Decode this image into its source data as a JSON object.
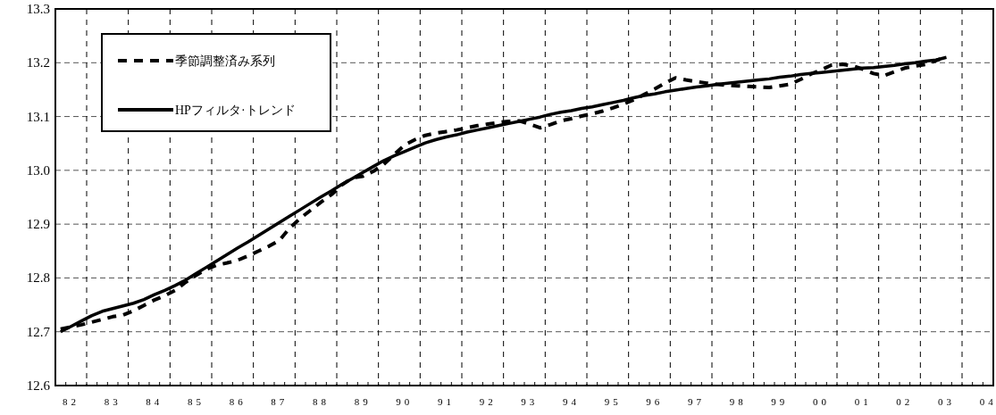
{
  "chart_data": {
    "type": "line",
    "grid": true,
    "legend": "top left",
    "ylim": [
      12.6,
      13.3
    ],
    "yticks": [
      12.6,
      12.7,
      12.8,
      12.9,
      {
        "value": 13,
        "label": "13.0"
      },
      13.1,
      13.2,
      13.3
    ],
    "categories": [
      null,
      "82",
      null,
      null,
      null,
      "83",
      null,
      null,
      null,
      "84",
      null,
      null,
      null,
      "85",
      null,
      null,
      null,
      "86",
      null,
      null,
      null,
      "87",
      null,
      null,
      null,
      "88",
      null,
      null,
      null,
      "89",
      null,
      null,
      null,
      "90",
      null,
      null,
      null,
      "91",
      null,
      null,
      null,
      "92",
      null,
      null,
      null,
      "93",
      null,
      null,
      null,
      "94",
      null,
      null,
      null,
      "95",
      null,
      null,
      null,
      "96",
      null,
      null,
      null,
      "97",
      null,
      null,
      null,
      "98",
      null,
      null,
      null,
      "99",
      null,
      null,
      null,
      "00",
      null,
      null,
      null,
      "01",
      null,
      null,
      null,
      "02",
      null,
      null,
      null,
      "03",
      null,
      null,
      null,
      "04"
    ],
    "series": [
      {
        "name": "季節調整済み系列",
        "color": "#000000",
        "line_style": "dashed",
        "values": [
          12.705,
          12.709,
          12.713,
          12.718,
          12.723,
          12.728,
          12.731,
          12.739,
          12.749,
          12.759,
          12.767,
          12.777,
          12.792,
          12.805,
          12.816,
          12.824,
          12.828,
          12.833,
          12.841,
          12.85,
          12.859,
          12.87,
          12.893,
          12.911,
          12.926,
          12.941,
          12.955,
          12.973,
          12.986,
          12.989,
          12.998,
          13.011,
          13.029,
          13.047,
          13.057,
          13.065,
          13.069,
          13.072,
          13.075,
          13.079,
          13.083,
          13.086,
          13.089,
          13.091,
          13.092,
          13.086,
          13.079,
          13.085,
          13.092,
          13.096,
          13.101,
          13.105,
          13.11,
          13.116,
          13.123,
          13.131,
          13.141,
          13.151,
          13.162,
          13.172,
          13.168,
          13.165,
          13.162,
          13.16,
          13.158,
          13.157,
          13.156,
          13.155,
          13.154,
          13.157,
          13.16,
          13.169,
          13.179,
          13.187,
          13.196,
          13.197,
          13.194,
          13.188,
          13.18,
          13.176,
          13.183,
          13.19,
          13.194,
          13.197,
          13.204,
          13.211,
          null,
          null,
          null,
          null
        ]
      },
      {
        "name": "HPフィルタ·トレンド",
        "color": "#000000",
        "line_style": "solid",
        "values": [
          12.7,
          12.71,
          12.72,
          12.73,
          12.738,
          12.743,
          12.748,
          12.753,
          12.76,
          12.769,
          12.777,
          12.786,
          12.796,
          12.808,
          12.82,
          12.832,
          12.844,
          12.856,
          12.867,
          12.879,
          12.891,
          12.903,
          12.915,
          12.927,
          12.939,
          12.951,
          12.962,
          12.974,
          12.985,
          12.996,
          13.007,
          13.018,
          13.027,
          13.035,
          13.043,
          13.051,
          13.057,
          13.062,
          13.066,
          13.071,
          13.075,
          13.079,
          13.083,
          13.087,
          13.091,
          13.095,
          13.099,
          13.104,
          13.108,
          13.111,
          13.115,
          13.118,
          13.122,
          13.126,
          13.13,
          13.135,
          13.139,
          13.142,
          13.146,
          13.149,
          13.152,
          13.155,
          13.157,
          13.16,
          13.162,
          13.164,
          13.166,
          13.168,
          13.17,
          13.173,
          13.175,
          13.178,
          13.18,
          13.182,
          13.184,
          13.186,
          13.188,
          13.19,
          13.191,
          13.193,
          13.195,
          13.198,
          13.2,
          13.203,
          13.205,
          13.21,
          null,
          null,
          null,
          null
        ]
      }
    ]
  }
}
